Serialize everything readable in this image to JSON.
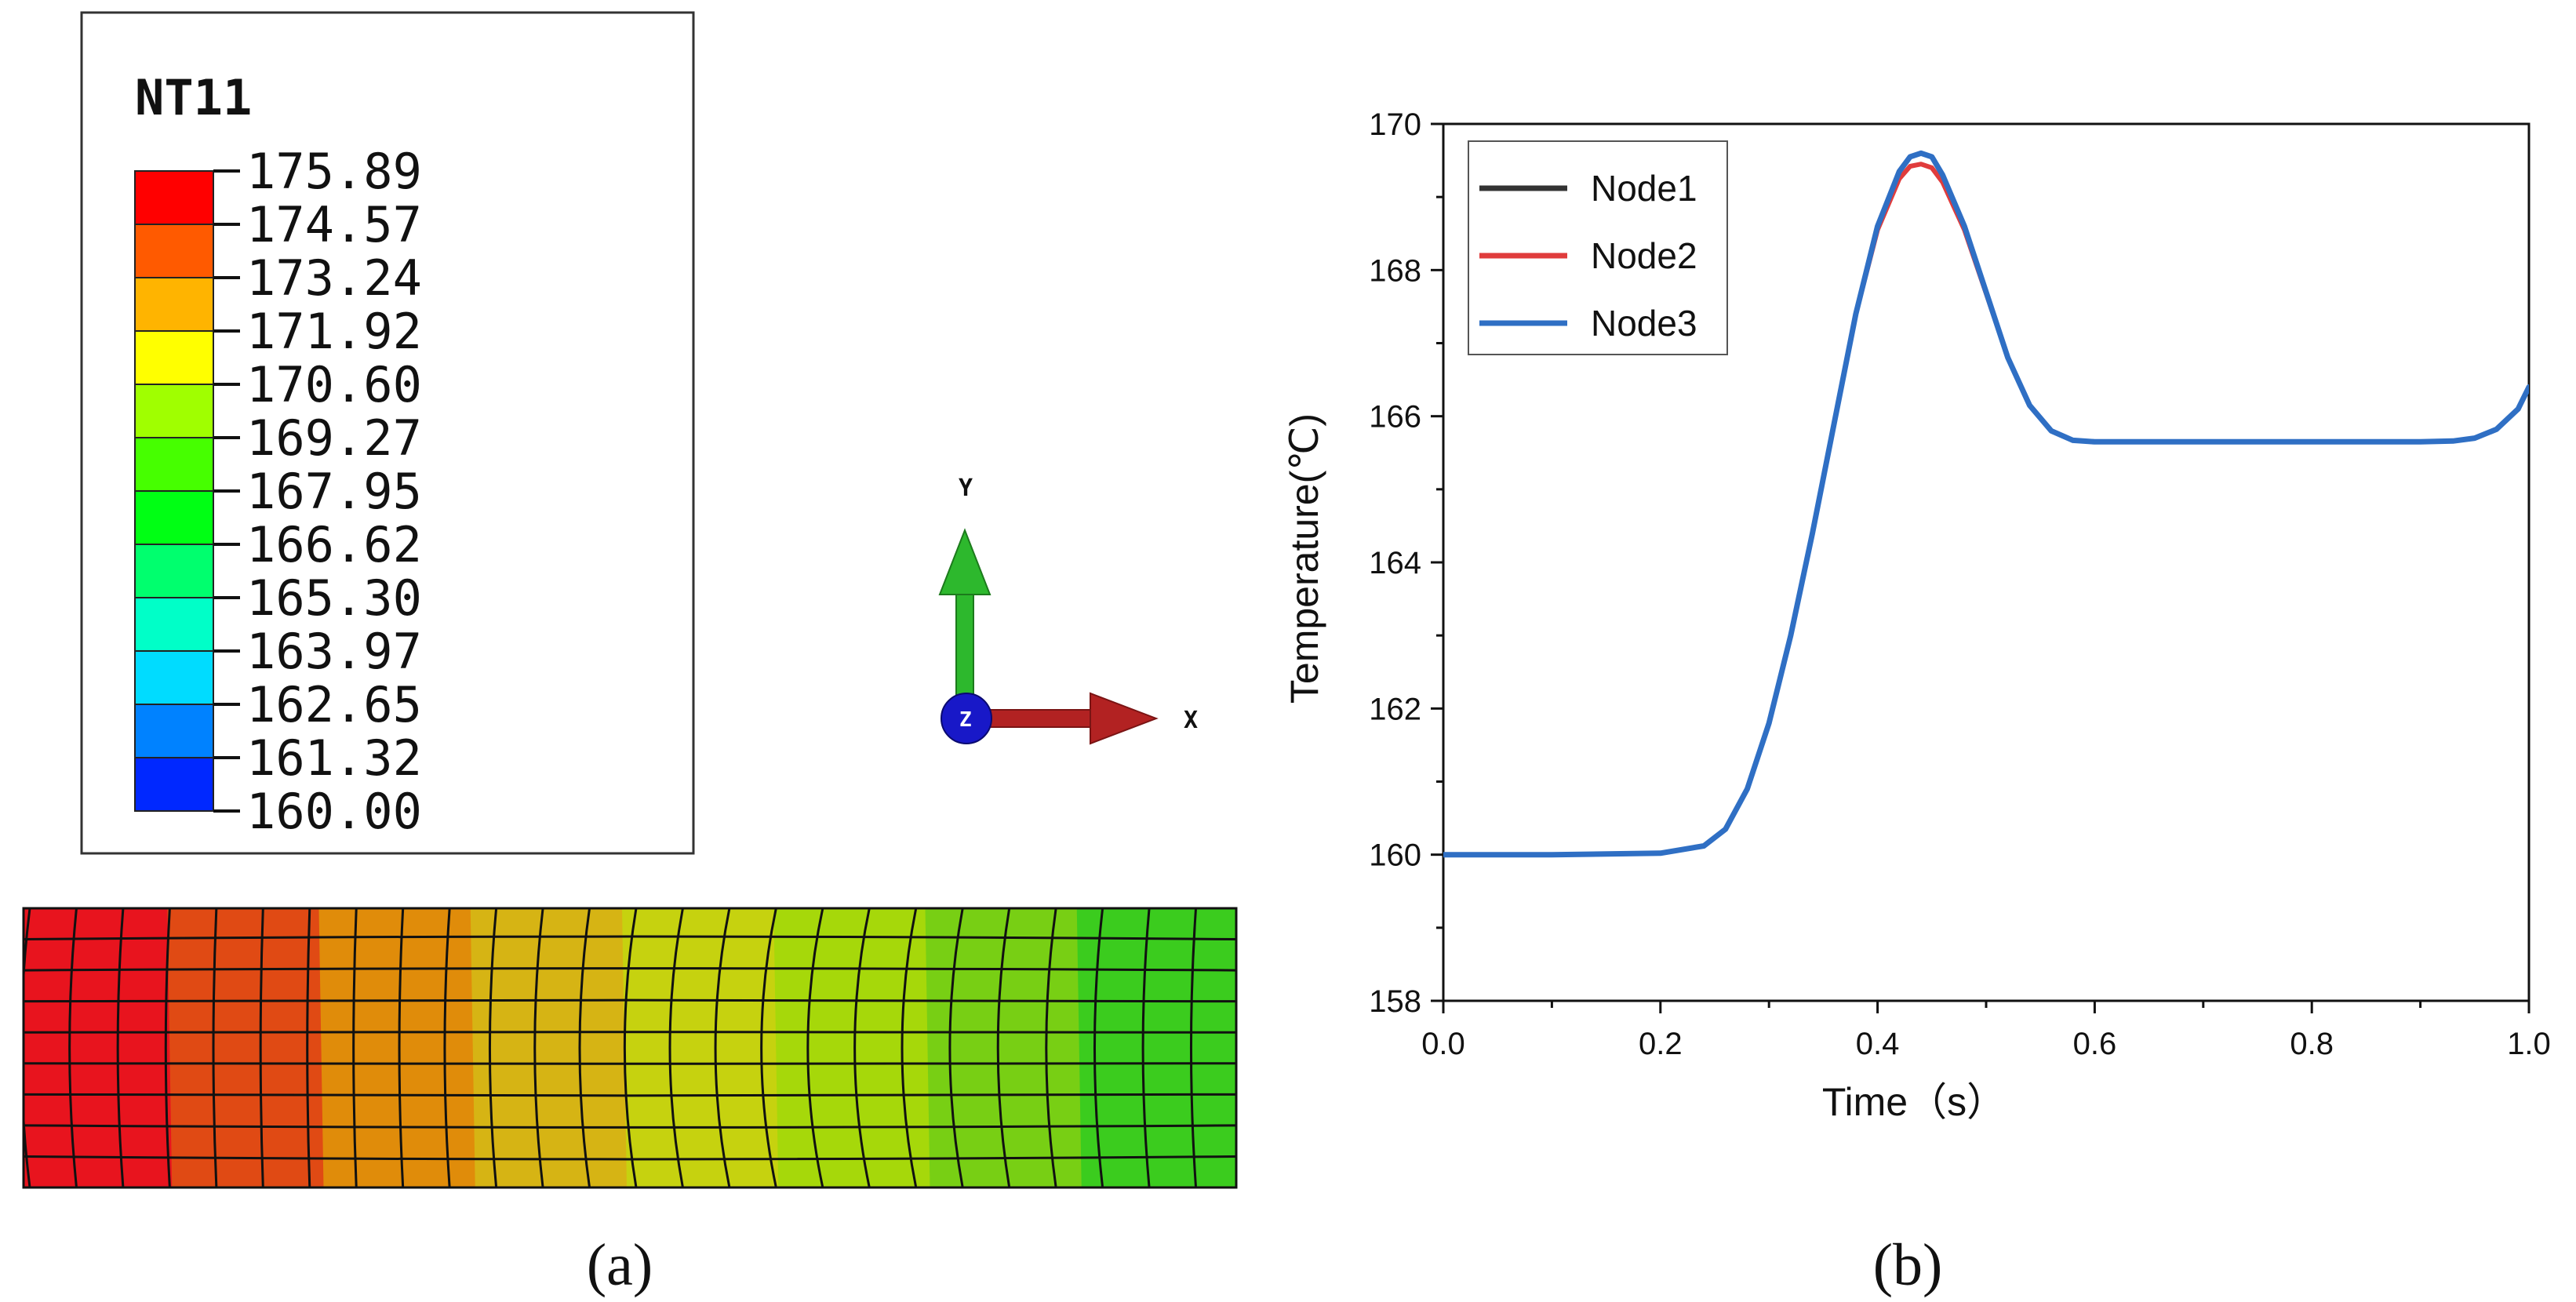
{
  "panel_a": {
    "caption": "(a)",
    "legend": {
      "title": "NT11",
      "levels": [
        "175.89",
        "174.57",
        "173.24",
        "171.92",
        "170.60",
        "169.27",
        "167.95",
        "166.62",
        "165.30",
        "163.97",
        "162.65",
        "161.32",
        "160.00"
      ],
      "colors": [
        "#ff0000",
        "#ff5a00",
        "#ffb400",
        "#ffff00",
        "#a0ff00",
        "#46ff00",
        "#00ff14",
        "#00ff6e",
        "#00ffc8",
        "#00dcff",
        "#0082ff",
        "#0028ff",
        "#0000dc"
      ]
    },
    "triad": {
      "x_label": "X",
      "y_label": "Y",
      "z_label": "Z",
      "x_color": "#b22222",
      "y_color": "#2db82d",
      "z_color": "#1818c8"
    },
    "mesh_bands": [
      "#e8141e",
      "#e04a14",
      "#e08c0a",
      "#d6b414",
      "#c6d20f",
      "#a6d80a",
      "#78cf14",
      "#3bcc1e"
    ]
  },
  "chart_data": {
    "type": "line",
    "caption": "(b)",
    "xlabel": "Time（s）",
    "ylabel": "Temperature(℃)",
    "xlim": [
      0.0,
      1.0
    ],
    "ylim": [
      158,
      170
    ],
    "xticks": [
      "0.0",
      "0.2",
      "0.4",
      "0.6",
      "0.8",
      "1.0"
    ],
    "yticks": [
      "158",
      "160",
      "162",
      "164",
      "166",
      "168",
      "170"
    ],
    "legend_position": "top-left",
    "series": [
      {
        "name": "Node1",
        "color": "#333333",
        "x": [
          0,
          0.1,
          0.2,
          0.24,
          0.26,
          0.28,
          0.3,
          0.32,
          0.34,
          0.36,
          0.38,
          0.4,
          0.42,
          0.43,
          0.44,
          0.45,
          0.46,
          0.48,
          0.5,
          0.52,
          0.54,
          0.56,
          0.58,
          0.6,
          0.7,
          0.8,
          0.9,
          0.93,
          0.95,
          0.97,
          0.99,
          1.0
        ],
        "y": [
          160,
          160,
          160.02,
          160.12,
          160.35,
          160.9,
          161.8,
          163.0,
          164.4,
          165.9,
          167.4,
          168.6,
          169.35,
          169.55,
          169.6,
          169.55,
          169.3,
          168.6,
          167.7,
          166.8,
          166.15,
          165.8,
          165.67,
          165.65,
          165.65,
          165.65,
          165.65,
          165.66,
          165.7,
          165.82,
          166.1,
          166.4
        ]
      },
      {
        "name": "Node2",
        "color": "#e03c3c",
        "x": [
          0,
          0.1,
          0.2,
          0.24,
          0.26,
          0.28,
          0.3,
          0.32,
          0.34,
          0.36,
          0.38,
          0.4,
          0.42,
          0.43,
          0.44,
          0.45,
          0.46,
          0.48,
          0.5,
          0.52,
          0.54,
          0.56,
          0.58,
          0.6,
          0.7,
          0.8,
          0.9,
          0.93,
          0.95,
          0.97,
          0.99,
          1.0
        ],
        "y": [
          160,
          160,
          160.02,
          160.12,
          160.35,
          160.9,
          161.8,
          163.0,
          164.4,
          165.9,
          167.4,
          168.55,
          169.25,
          169.42,
          169.45,
          169.4,
          169.2,
          168.55,
          167.68,
          166.8,
          166.15,
          165.8,
          165.67,
          165.65,
          165.65,
          165.65,
          165.65,
          165.66,
          165.7,
          165.82,
          166.1,
          166.4
        ]
      },
      {
        "name": "Node3",
        "color": "#2f6fc4",
        "x": [
          0,
          0.1,
          0.2,
          0.24,
          0.26,
          0.28,
          0.3,
          0.32,
          0.34,
          0.36,
          0.38,
          0.4,
          0.42,
          0.43,
          0.44,
          0.45,
          0.46,
          0.48,
          0.5,
          0.52,
          0.54,
          0.56,
          0.58,
          0.6,
          0.7,
          0.8,
          0.9,
          0.93,
          0.95,
          0.97,
          0.99,
          1.0
        ],
        "y": [
          160,
          160,
          160.02,
          160.12,
          160.35,
          160.9,
          161.8,
          163.0,
          164.4,
          165.9,
          167.4,
          168.6,
          169.35,
          169.55,
          169.6,
          169.55,
          169.3,
          168.6,
          167.7,
          166.8,
          166.15,
          165.8,
          165.67,
          165.65,
          165.65,
          165.65,
          165.65,
          165.66,
          165.7,
          165.82,
          166.1,
          166.4
        ]
      }
    ]
  }
}
